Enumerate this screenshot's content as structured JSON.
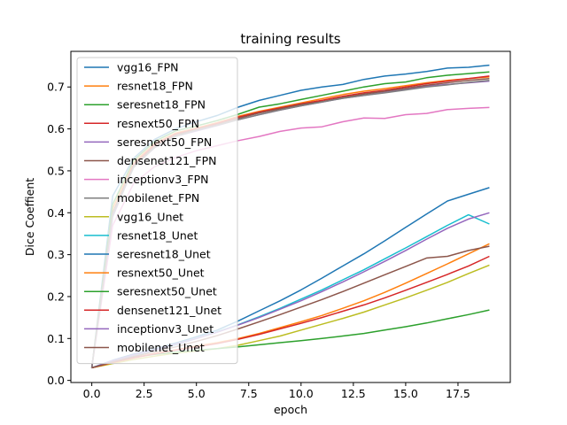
{
  "chart_data": {
    "type": "line",
    "title": "training results",
    "xlabel": "epoch",
    "ylabel": "Dice Coeffient",
    "xlim": [
      -1,
      20
    ],
    "ylim": [
      -0.005,
      0.785
    ],
    "xticks": [
      0.0,
      2.5,
      5.0,
      7.5,
      10.0,
      12.5,
      15.0,
      17.5
    ],
    "xtick_labels": [
      "0.0",
      "2.5",
      "5.0",
      "7.5",
      "10.0",
      "12.5",
      "15.0",
      "17.5"
    ],
    "yticks": [
      0.0,
      0.1,
      0.2,
      0.3,
      0.4,
      0.5,
      0.6,
      0.7
    ],
    "ytick_labels": [
      "0.0",
      "0.1",
      "0.2",
      "0.3",
      "0.4",
      "0.5",
      "0.6",
      "0.7"
    ],
    "grid": false,
    "legend_position": "upper-left",
    "x": [
      0,
      1,
      2,
      3,
      4,
      5,
      6,
      7,
      8,
      9,
      10,
      11,
      12,
      13,
      14,
      15,
      16,
      17,
      18,
      19
    ],
    "series": [
      {
        "name": "vgg16_FPN",
        "color": "#1f77b4",
        "values": [
          0.03,
          0.44,
          0.53,
          0.575,
          0.6,
          0.617,
          0.632,
          0.652,
          0.668,
          0.68,
          0.692,
          0.7,
          0.706,
          0.718,
          0.726,
          0.731,
          0.737,
          0.745,
          0.747,
          0.752
        ]
      },
      {
        "name": "resnet18_FPN",
        "color": "#ff7f0e",
        "values": [
          0.03,
          0.41,
          0.52,
          0.565,
          0.59,
          0.602,
          0.615,
          0.63,
          0.642,
          0.652,
          0.662,
          0.672,
          0.682,
          0.69,
          0.696,
          0.703,
          0.71,
          0.716,
          0.72,
          0.724
        ]
      },
      {
        "name": "seresnet18_FPN",
        "color": "#2ca02c",
        "values": [
          0.03,
          0.42,
          0.525,
          0.57,
          0.595,
          0.607,
          0.62,
          0.635,
          0.652,
          0.66,
          0.67,
          0.68,
          0.69,
          0.7,
          0.708,
          0.712,
          0.722,
          0.728,
          0.732,
          0.736
        ]
      },
      {
        "name": "resnext50_FPN",
        "color": "#d62728",
        "values": [
          0.03,
          0.4,
          0.515,
          0.562,
          0.588,
          0.6,
          0.613,
          0.628,
          0.64,
          0.65,
          0.66,
          0.668,
          0.678,
          0.686,
          0.692,
          0.7,
          0.708,
          0.714,
          0.72,
          0.726
        ]
      },
      {
        "name": "seresnext50_FPN",
        "color": "#9467bd",
        "values": [
          0.03,
          0.39,
          0.51,
          0.555,
          0.582,
          0.595,
          0.608,
          0.622,
          0.634,
          0.645,
          0.655,
          0.664,
          0.673,
          0.68,
          0.687,
          0.694,
          0.702,
          0.706,
          0.71,
          0.714
        ]
      },
      {
        "name": "densenet121_FPN",
        "color": "#8c564b",
        "values": [
          0.03,
          0.4,
          0.512,
          0.558,
          0.585,
          0.598,
          0.61,
          0.625,
          0.638,
          0.648,
          0.658,
          0.665,
          0.675,
          0.683,
          0.69,
          0.697,
          0.704,
          0.71,
          0.716,
          0.72
        ]
      },
      {
        "name": "inceptionv3_FPN",
        "color": "#e377c2",
        "values": [
          0.03,
          0.37,
          0.47,
          0.51,
          0.532,
          0.548,
          0.56,
          0.572,
          0.582,
          0.594,
          0.602,
          0.605,
          0.617,
          0.626,
          0.625,
          0.634,
          0.637,
          0.646,
          0.649,
          0.651
        ]
      },
      {
        "name": "mobilenet_FPN",
        "color": "#7f7f7f",
        "values": [
          0.03,
          0.395,
          0.508,
          0.556,
          0.582,
          0.597,
          0.609,
          0.622,
          0.634,
          0.645,
          0.655,
          0.664,
          0.673,
          0.68,
          0.686,
          0.693,
          0.7,
          0.705,
          0.711,
          0.716
        ]
      },
      {
        "name": "vgg16_Unet",
        "color": "#bcbd22",
        "values": [
          0.03,
          0.04,
          0.05,
          0.058,
          0.065,
          0.07,
          0.076,
          0.084,
          0.095,
          0.106,
          0.12,
          0.134,
          0.148,
          0.163,
          0.18,
          0.197,
          0.215,
          0.234,
          0.255,
          0.275
        ]
      },
      {
        "name": "resnet18_Unet",
        "color": "#17becf",
        "values": [
          0.03,
          0.045,
          0.06,
          0.072,
          0.085,
          0.1,
          0.116,
          0.133,
          0.152,
          0.172,
          0.194,
          0.216,
          0.24,
          0.264,
          0.29,
          0.316,
          0.343,
          0.37,
          0.395,
          0.373
        ]
      },
      {
        "name": "seresnet18_Unet",
        "color": "#1f77b4",
        "values": [
          0.03,
          0.048,
          0.063,
          0.075,
          0.089,
          0.104,
          0.12,
          0.142,
          0.166,
          0.19,
          0.216,
          0.244,
          0.273,
          0.302,
          0.333,
          0.365,
          0.397,
          0.428,
          0.444,
          0.46
        ]
      },
      {
        "name": "resnext50_Unet",
        "color": "#ff7f0e",
        "values": [
          0.03,
          0.042,
          0.054,
          0.064,
          0.073,
          0.082,
          0.09,
          0.1,
          0.112,
          0.126,
          0.14,
          0.155,
          0.172,
          0.19,
          0.21,
          0.232,
          0.255,
          0.278,
          0.302,
          0.326
        ]
      },
      {
        "name": "seresnext50_Unet",
        "color": "#2ca02c",
        "values": [
          0.03,
          0.045,
          0.055,
          0.062,
          0.067,
          0.072,
          0.076,
          0.08,
          0.085,
          0.09,
          0.095,
          0.1,
          0.106,
          0.112,
          0.12,
          0.128,
          0.137,
          0.147,
          0.157,
          0.168
        ]
      },
      {
        "name": "densenet121_Unet",
        "color": "#d62728",
        "values": [
          0.03,
          0.043,
          0.054,
          0.063,
          0.072,
          0.08,
          0.088,
          0.098,
          0.11,
          0.123,
          0.136,
          0.15,
          0.165,
          0.18,
          0.197,
          0.215,
          0.234,
          0.253,
          0.273,
          0.296
        ]
      },
      {
        "name": "inceptionv3_Unet",
        "color": "#9467bd",
        "values": [
          0.03,
          0.047,
          0.061,
          0.073,
          0.086,
          0.1,
          0.115,
          0.132,
          0.15,
          0.17,
          0.19,
          0.212,
          0.235,
          0.259,
          0.284,
          0.31,
          0.337,
          0.363,
          0.385,
          0.4
        ]
      },
      {
        "name": "mobilenet_Unet",
        "color": "#8c564b",
        "values": [
          0.03,
          0.044,
          0.057,
          0.068,
          0.08,
          0.093,
          0.107,
          0.123,
          0.14,
          0.157,
          0.175,
          0.193,
          0.212,
          0.232,
          0.252,
          0.272,
          0.292,
          0.296,
          0.31,
          0.32
        ]
      }
    ]
  }
}
